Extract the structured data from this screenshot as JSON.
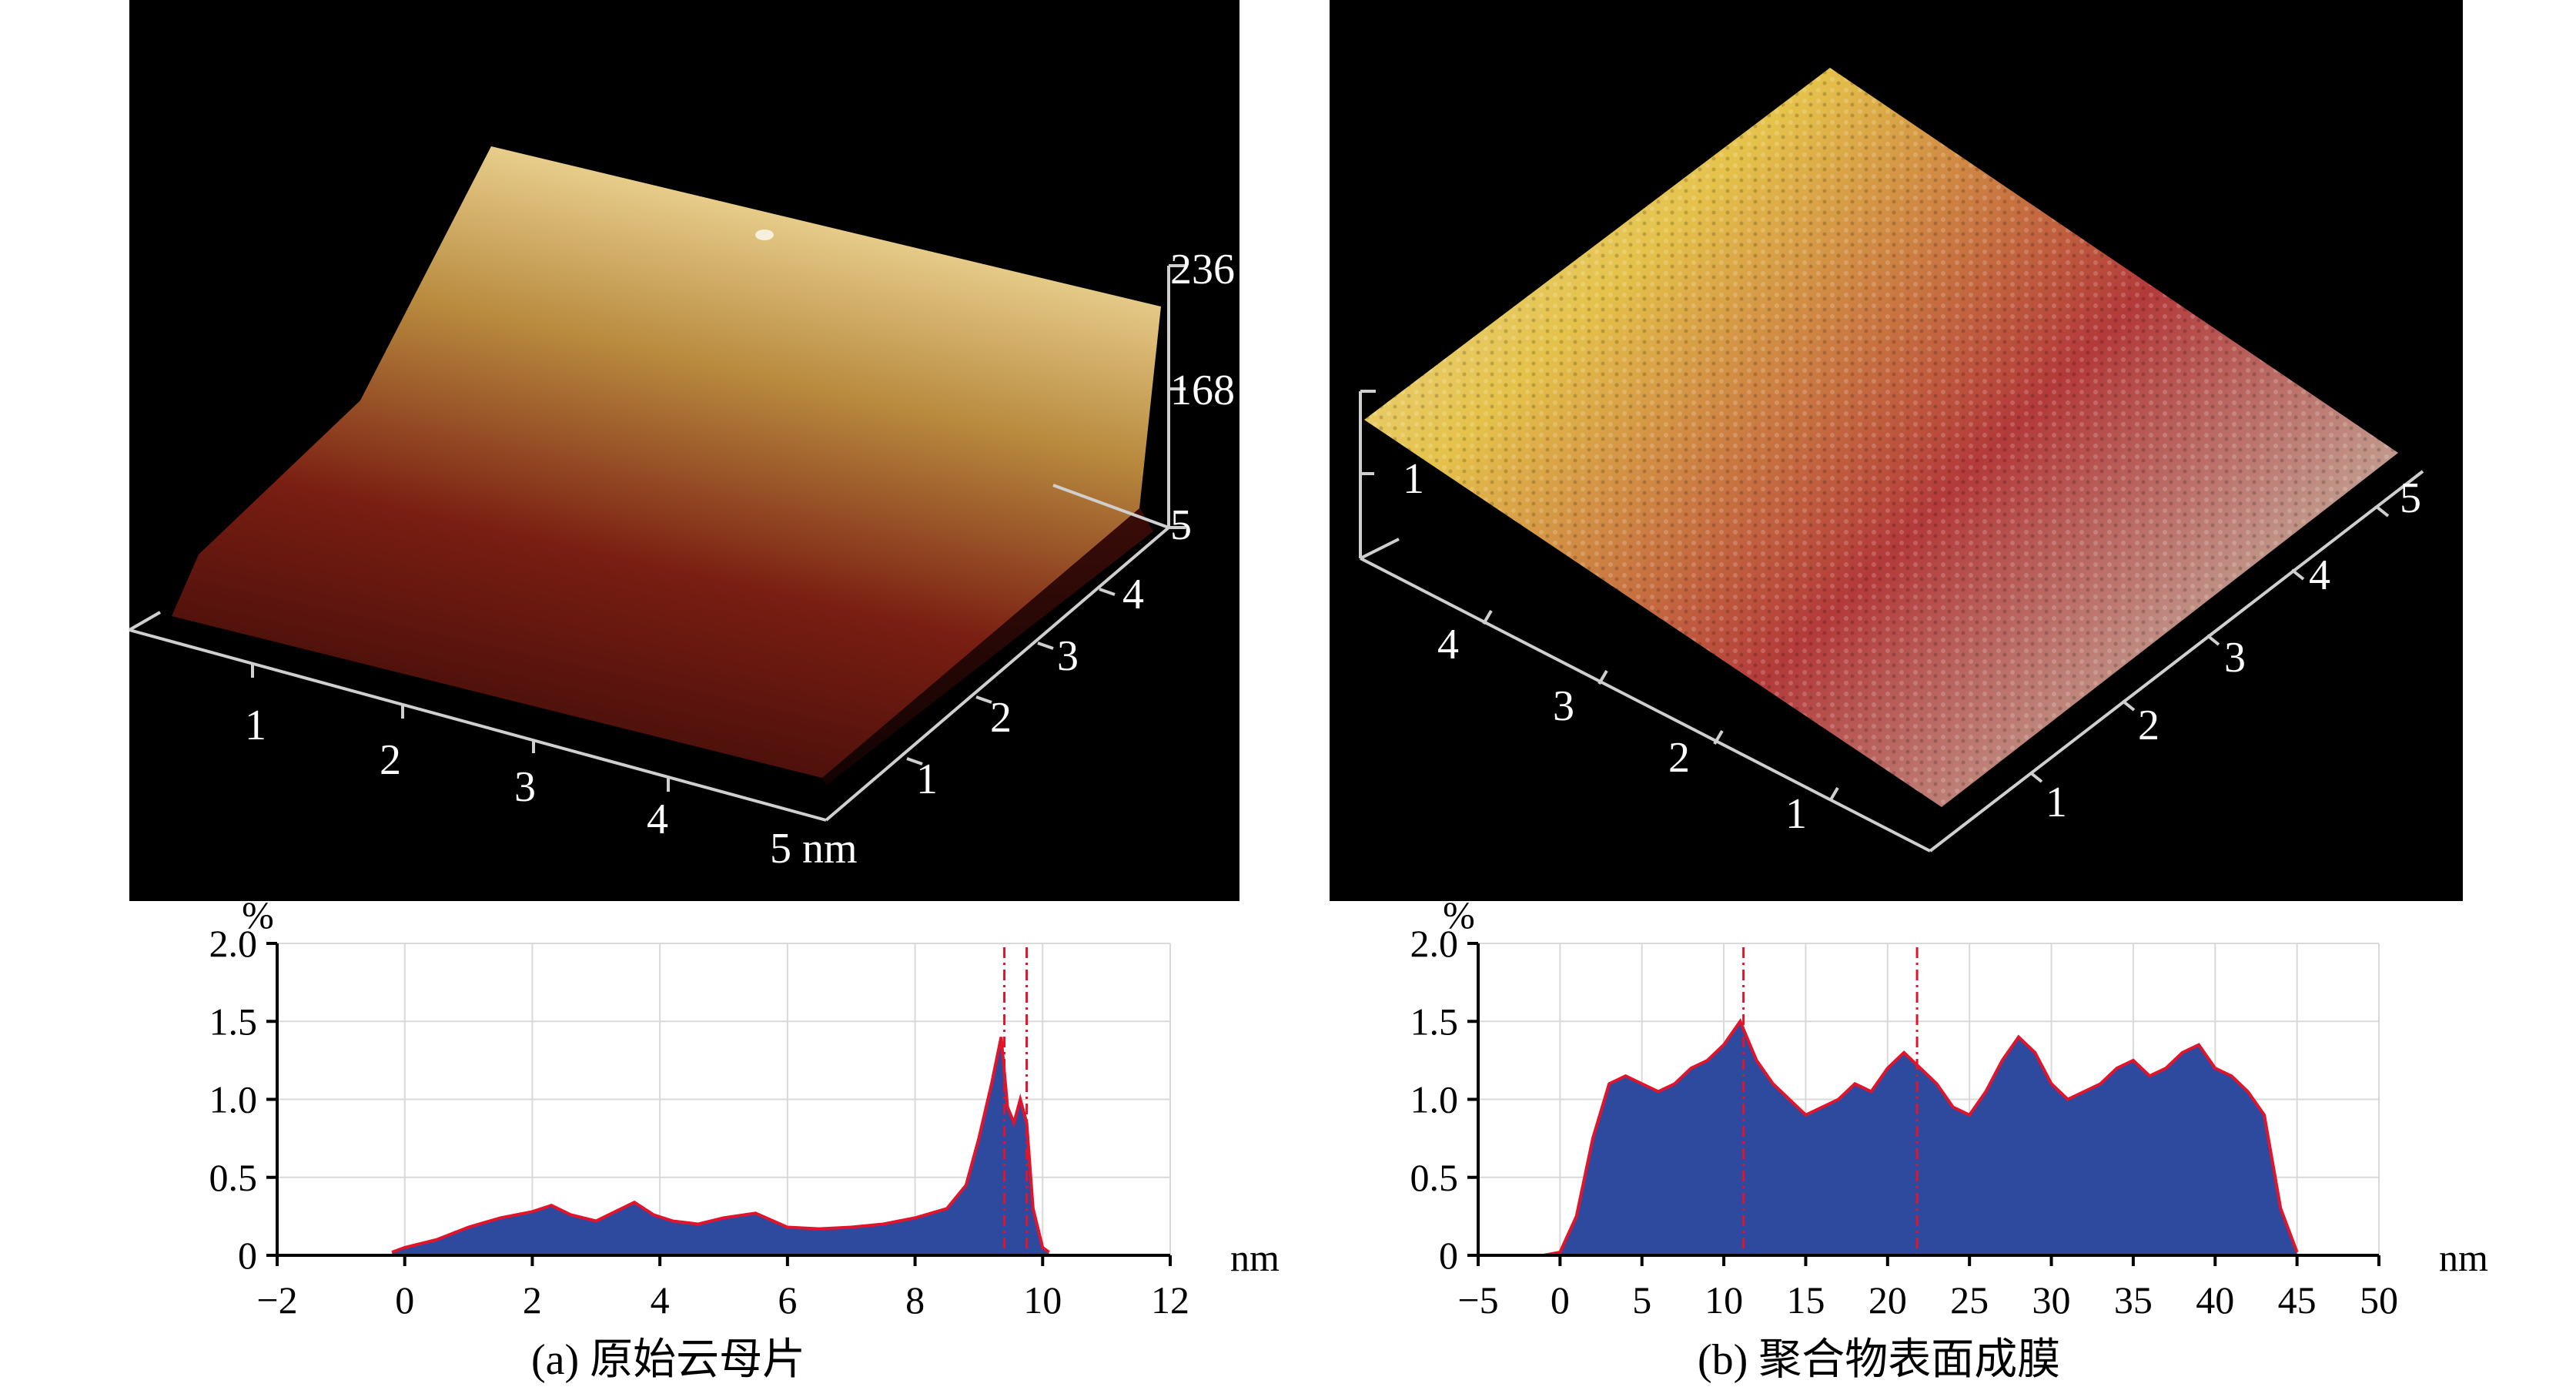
{
  "panel_a": {
    "z_ticks": [
      "236",
      "168",
      "5"
    ],
    "x_ticks": [
      "1",
      "2",
      "3",
      "4",
      "5 nm"
    ],
    "y_ticks": [
      "1",
      "2",
      "3",
      "4"
    ],
    "colors": {
      "low": "#2a0606",
      "mid": "#7a1e12",
      "high": "#e9cf8e"
    }
  },
  "panel_b": {
    "z_ticks": [
      "1"
    ],
    "x_ticks": [
      "1",
      "2",
      "3",
      "4"
    ],
    "y_ticks": [
      "1",
      "2",
      "3",
      "4",
      "5"
    ],
    "colors": {
      "low": "#c6b7a6",
      "mid": "#b33a3a",
      "high": "#e5c24a"
    }
  },
  "caption_a": "(a) 原始云母片",
  "caption_b": "(b) 聚合物表面成膜",
  "chart_data": [
    {
      "type": "area",
      "ylabel": "%",
      "xlabel": "nm",
      "xlim": [
        -2,
        12
      ],
      "ylim": [
        0,
        2.0
      ],
      "x_ticks": [
        "−2",
        "0",
        "2",
        "4",
        "6",
        "8",
        "10",
        "12"
      ],
      "y_ticks": [
        "0",
        "0.5",
        "1.0",
        "1.5",
        "2.0"
      ],
      "grid": true,
      "x": [
        -0.2,
        0,
        0.5,
        1.0,
        1.5,
        2.0,
        2.3,
        2.6,
        3.0,
        3.3,
        3.6,
        3.9,
        4.2,
        4.6,
        5.0,
        5.5,
        6.0,
        6.5,
        7.0,
        7.5,
        8.0,
        8.5,
        8.8,
        9.0,
        9.2,
        9.35,
        9.45,
        9.55,
        9.65,
        9.75,
        9.85,
        10.0,
        10.1
      ],
      "values": [
        0.02,
        0.05,
        0.1,
        0.18,
        0.24,
        0.28,
        0.32,
        0.26,
        0.22,
        0.28,
        0.34,
        0.26,
        0.22,
        0.2,
        0.24,
        0.27,
        0.18,
        0.17,
        0.18,
        0.2,
        0.24,
        0.3,
        0.45,
        0.75,
        1.1,
        1.4,
        0.95,
        0.85,
        1.0,
        0.85,
        0.3,
        0.05,
        0.02
      ],
      "markers": [
        9.4,
        9.75
      ]
    },
    {
      "type": "area",
      "ylabel": "%",
      "xlabel": "nm",
      "xlim": [
        -5,
        50
      ],
      "ylim": [
        0,
        2.0
      ],
      "x_ticks": [
        "−5",
        "0",
        "5",
        "10",
        "15",
        "20",
        "25",
        "30",
        "35",
        "40",
        "45",
        "50"
      ],
      "y_ticks": [
        "0",
        "0.5",
        "1.0",
        "1.5",
        "2.0"
      ],
      "grid": true,
      "x": [
        -1,
        0,
        1,
        2,
        3,
        4,
        5,
        6,
        7,
        8,
        9,
        10,
        11,
        12,
        13,
        14,
        15,
        16,
        17,
        18,
        19,
        20,
        21,
        22,
        23,
        24,
        25,
        26,
        27,
        28,
        29,
        30,
        31,
        32,
        33,
        34,
        35,
        36,
        37,
        38,
        39,
        40,
        41,
        42,
        43,
        44,
        45
      ],
      "values": [
        0.0,
        0.02,
        0.25,
        0.75,
        1.1,
        1.15,
        1.1,
        1.05,
        1.1,
        1.2,
        1.25,
        1.35,
        1.5,
        1.25,
        1.1,
        1.0,
        0.9,
        0.95,
        1.0,
        1.1,
        1.05,
        1.2,
        1.3,
        1.2,
        1.1,
        0.95,
        0.9,
        1.05,
        1.25,
        1.4,
        1.3,
        1.1,
        1.0,
        1.05,
        1.1,
        1.2,
        1.25,
        1.15,
        1.2,
        1.3,
        1.35,
        1.2,
        1.15,
        1.05,
        0.9,
        0.3,
        0.02
      ],
      "markers": [
        11.2,
        21.8
      ]
    }
  ]
}
